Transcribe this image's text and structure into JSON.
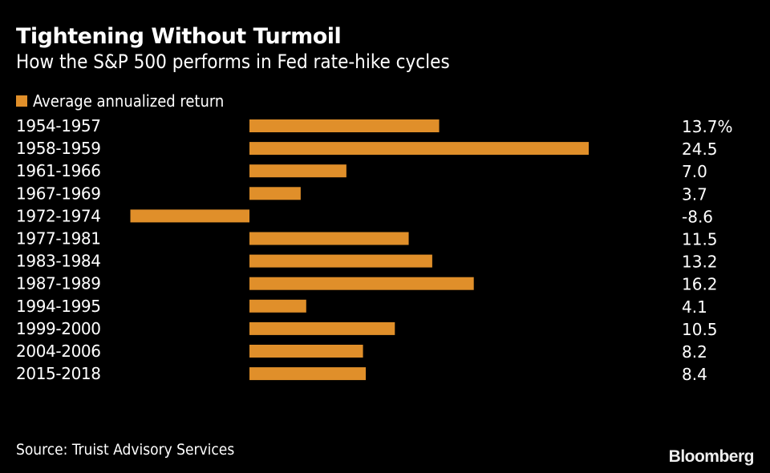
{
  "chart_data": {
    "type": "bar",
    "orientation": "horizontal",
    "title": "Tightening Without Turmoil",
    "subtitle": "How the S&P 500 performs in Fed rate-hike cycles",
    "categories": [
      "1954-1957",
      "1958-1959",
      "1961-1966",
      "1967-1969",
      "1972-1974",
      "1977-1981",
      "1983-1984",
      "1987-1989",
      "1994-1995",
      "1999-2000",
      "2004-2006",
      "2015-2018"
    ],
    "series": [
      {
        "name": "Average annualized return",
        "values": [
          13.7,
          24.5,
          7.0,
          3.7,
          -8.6,
          11.5,
          13.2,
          16.2,
          4.1,
          10.5,
          8.2,
          8.4
        ],
        "color": "#e08f2a"
      }
    ],
    "value_labels": [
      "13.7%",
      "24.5",
      "7.0",
      "3.7",
      "-8.6",
      "11.5",
      "13.2",
      "16.2",
      "4.1",
      "10.5",
      "8.2",
      "8.4"
    ],
    "xlim": [
      -8.6,
      24.5
    ],
    "grid": false,
    "legend_placement": "top-left"
  },
  "source": "Source: Truist Advisory Services",
  "logo": "Bloomberg"
}
